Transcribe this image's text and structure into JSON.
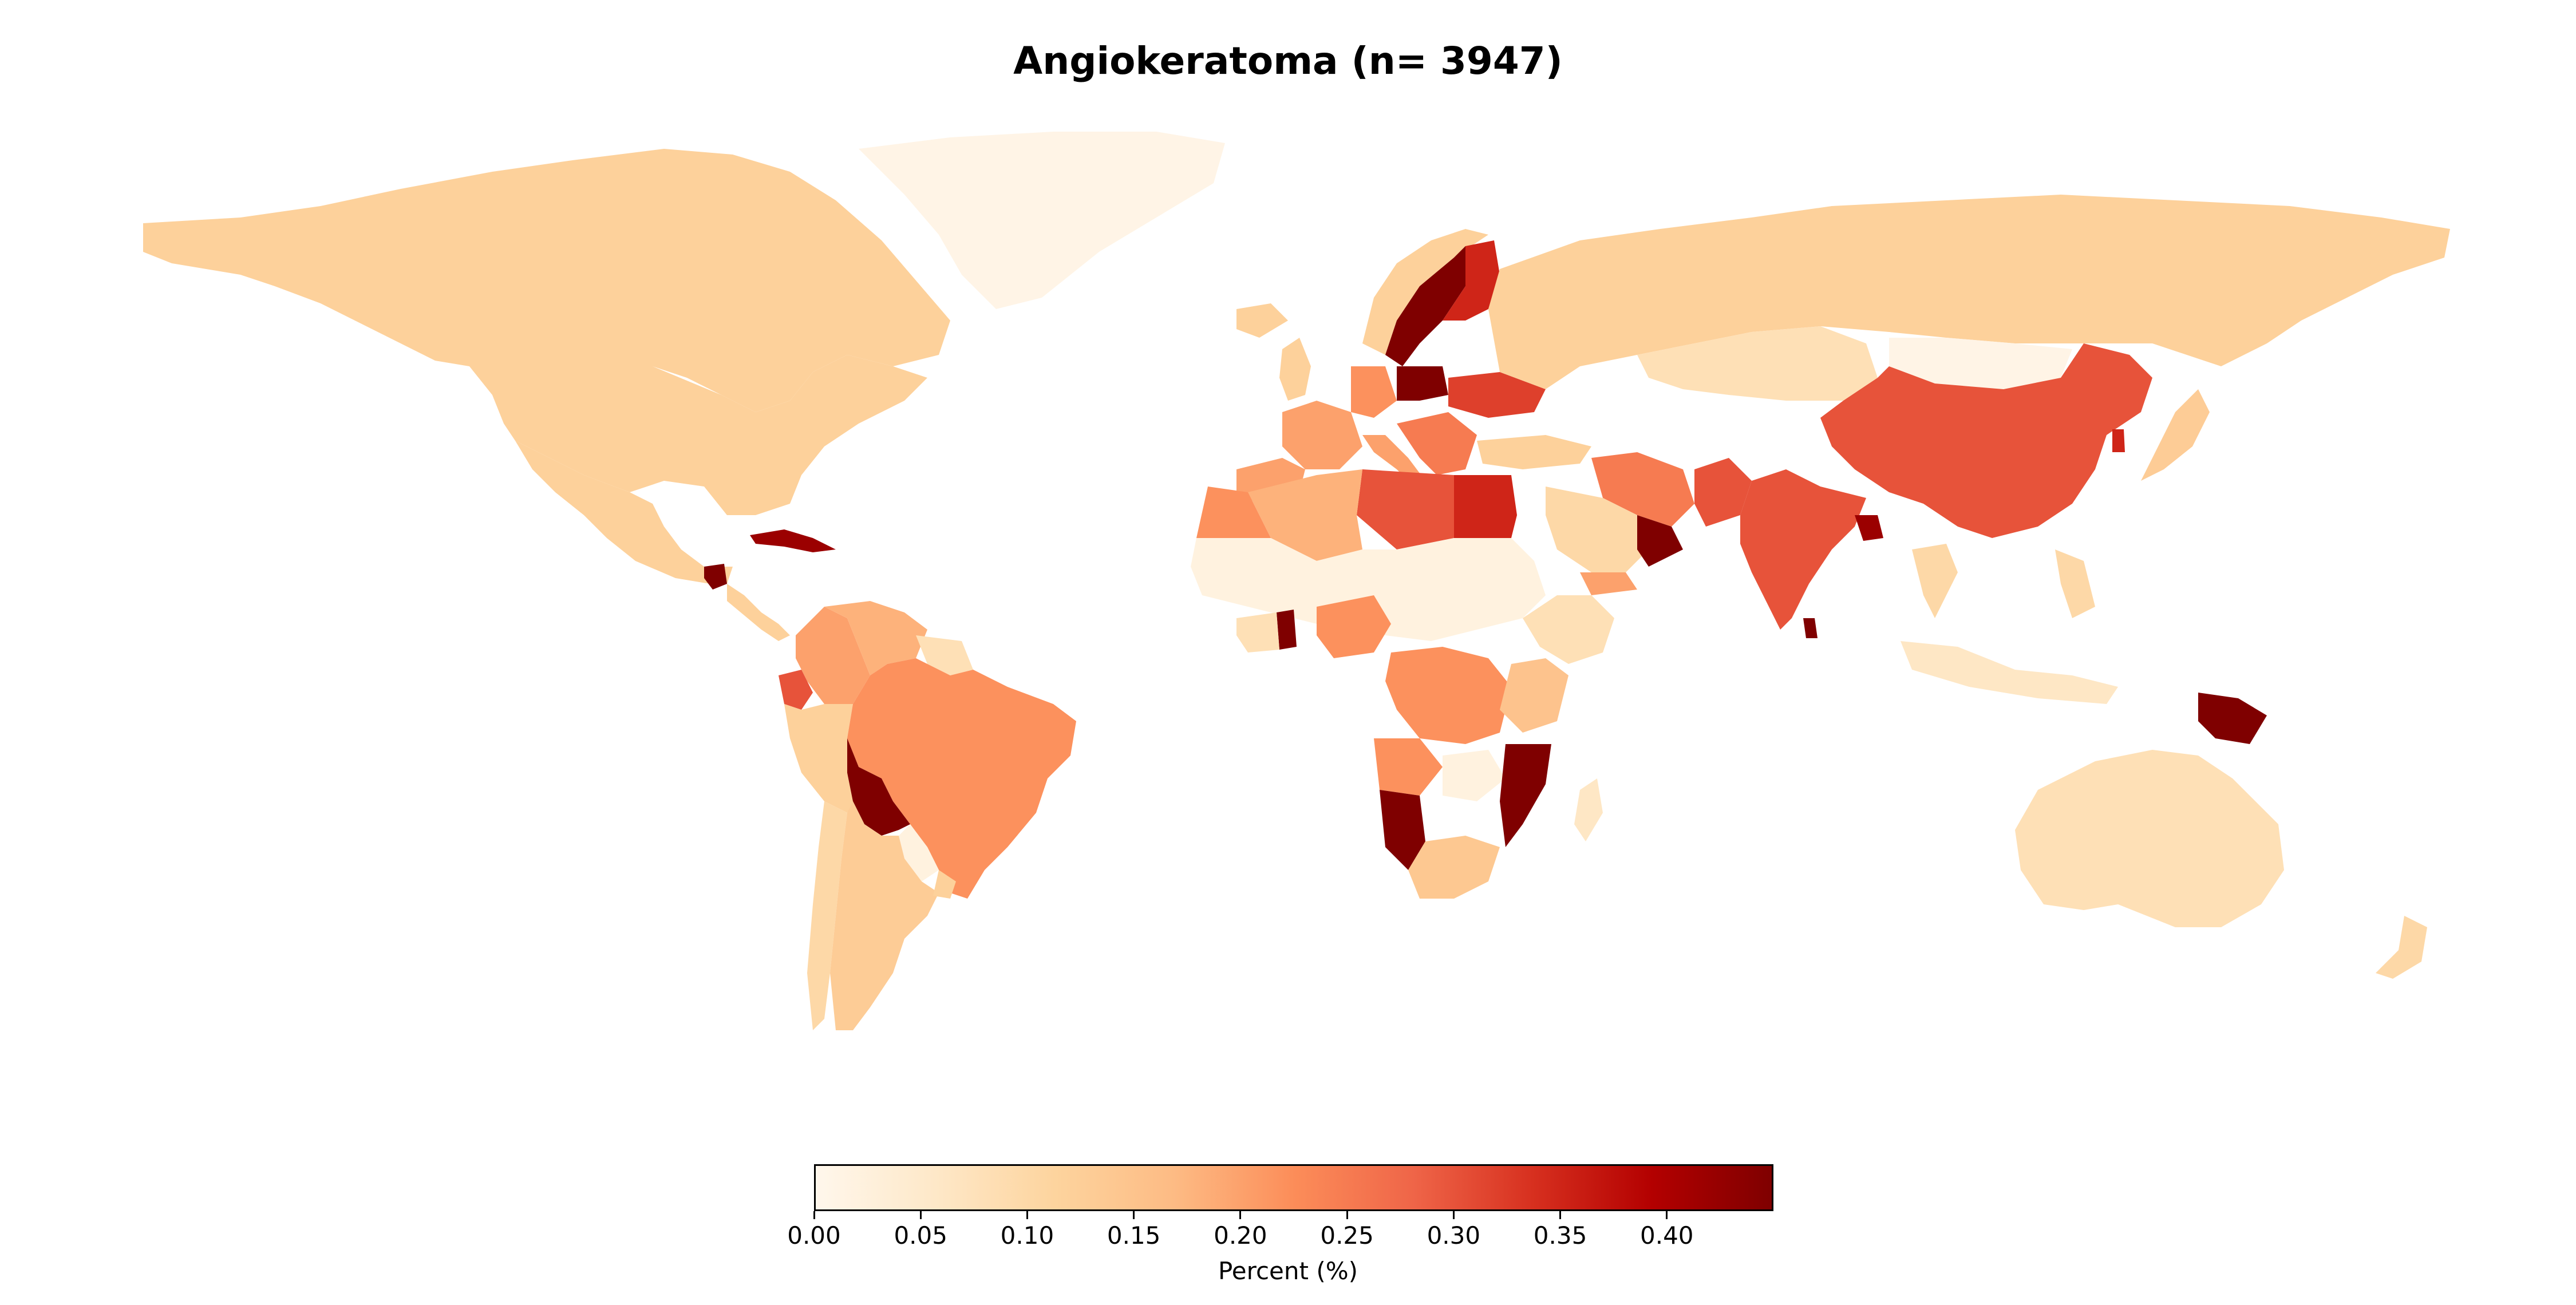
{
  "title": "Angiokeratoma (n= 3947)",
  "colorbar": {
    "label": "Percent (%)",
    "colormap": "OrRd",
    "min": 0.0,
    "max": 0.45,
    "ticks": [
      "0.00",
      "0.05",
      "0.10",
      "0.15",
      "0.20",
      "0.25",
      "0.30",
      "0.35",
      "0.40"
    ],
    "colors": [
      "#fff7ec",
      "#fee8c8",
      "#fdd49e",
      "#fdbb84",
      "#fc8d59",
      "#ef6548",
      "#d7301f",
      "#b30000",
      "#7f0000"
    ]
  },
  "chart_data": {
    "type": "choropleth",
    "title": "Angiokeratoma (n= 3947)",
    "legend_label": "Percent (%)",
    "range": [
      0.0,
      0.45
    ],
    "countries": [
      {
        "name": "Canada",
        "value": 0.12
      },
      {
        "name": "United States",
        "value": 0.12
      },
      {
        "name": "Mexico",
        "value": 0.12
      },
      {
        "name": "Guatemala",
        "value": 0.45
      },
      {
        "name": "Cuba",
        "value": 0.42
      },
      {
        "name": "Colombia",
        "value": 0.2
      },
      {
        "name": "Venezuela",
        "value": 0.18
      },
      {
        "name": "Ecuador",
        "value": 0.3
      },
      {
        "name": "Peru",
        "value": 0.12
      },
      {
        "name": "Brazil",
        "value": 0.22
      },
      {
        "name": "Bolivia",
        "value": 0.45
      },
      {
        "name": "Chile",
        "value": 0.1
      },
      {
        "name": "Argentina",
        "value": 0.13
      },
      {
        "name": "Paraguay",
        "value": 0.02
      },
      {
        "name": "Uruguay",
        "value": 0.12
      },
      {
        "name": "Greenland",
        "value": 0.01
      },
      {
        "name": "Iceland",
        "value": 0.12
      },
      {
        "name": "United Kingdom",
        "value": 0.12
      },
      {
        "name": "Norway",
        "value": 0.12
      },
      {
        "name": "Sweden",
        "value": 0.45
      },
      {
        "name": "Finland",
        "value": 0.35
      },
      {
        "name": "Poland",
        "value": 0.45
      },
      {
        "name": "Ukraine",
        "value": 0.32
      },
      {
        "name": "France",
        "value": 0.2
      },
      {
        "name": "Germany",
        "value": 0.22
      },
      {
        "name": "Spain",
        "value": 0.2
      },
      {
        "name": "Italy",
        "value": 0.2
      },
      {
        "name": "Russia",
        "value": 0.12
      },
      {
        "name": "Kazakhstan",
        "value": 0.08
      },
      {
        "name": "Mongolia",
        "value": 0.01
      },
      {
        "name": "China",
        "value": 0.3
      },
      {
        "name": "Japan",
        "value": 0.13
      },
      {
        "name": "South Korea",
        "value": 0.35
      },
      {
        "name": "India",
        "value": 0.3
      },
      {
        "name": "Sri Lanka",
        "value": 0.45
      },
      {
        "name": "Bangladesh",
        "value": 0.42
      },
      {
        "name": "Pakistan",
        "value": 0.3
      },
      {
        "name": "Iran",
        "value": 0.25
      },
      {
        "name": "Saudi Arabia",
        "value": 0.1
      },
      {
        "name": "Oman",
        "value": 0.45
      },
      {
        "name": "Turkey",
        "value": 0.12
      },
      {
        "name": "Egypt",
        "value": 0.35
      },
      {
        "name": "Libya",
        "value": 0.3
      },
      {
        "name": "Algeria",
        "value": 0.18
      },
      {
        "name": "Morocco",
        "value": 0.22
      },
      {
        "name": "Mali",
        "value": 0.02
      },
      {
        "name": "Niger",
        "value": 0.02
      },
      {
        "name": "Chad",
        "value": 0.02
      },
      {
        "name": "Sudan",
        "value": 0.02
      },
      {
        "name": "Nigeria",
        "value": 0.22
      },
      {
        "name": "Ghana",
        "value": 0.45
      },
      {
        "name": "Ethiopia",
        "value": 0.08
      },
      {
        "name": "DR Congo",
        "value": 0.22
      },
      {
        "name": "Angola",
        "value": 0.22
      },
      {
        "name": "Namibia",
        "value": 0.45
      },
      {
        "name": "Mozambique",
        "value": 0.45
      },
      {
        "name": "Zambia",
        "value": 0.02
      },
      {
        "name": "South Africa",
        "value": 0.14
      },
      {
        "name": "Madagascar",
        "value": 0.06
      },
      {
        "name": "Thailand",
        "value": 0.1
      },
      {
        "name": "Indonesia",
        "value": 0.06
      },
      {
        "name": "Philippines",
        "value": 0.1
      },
      {
        "name": "Papua New Guinea",
        "value": 0.45
      },
      {
        "name": "Australia",
        "value": 0.08
      },
      {
        "name": "New Zealand",
        "value": 0.1
      }
    ]
  }
}
